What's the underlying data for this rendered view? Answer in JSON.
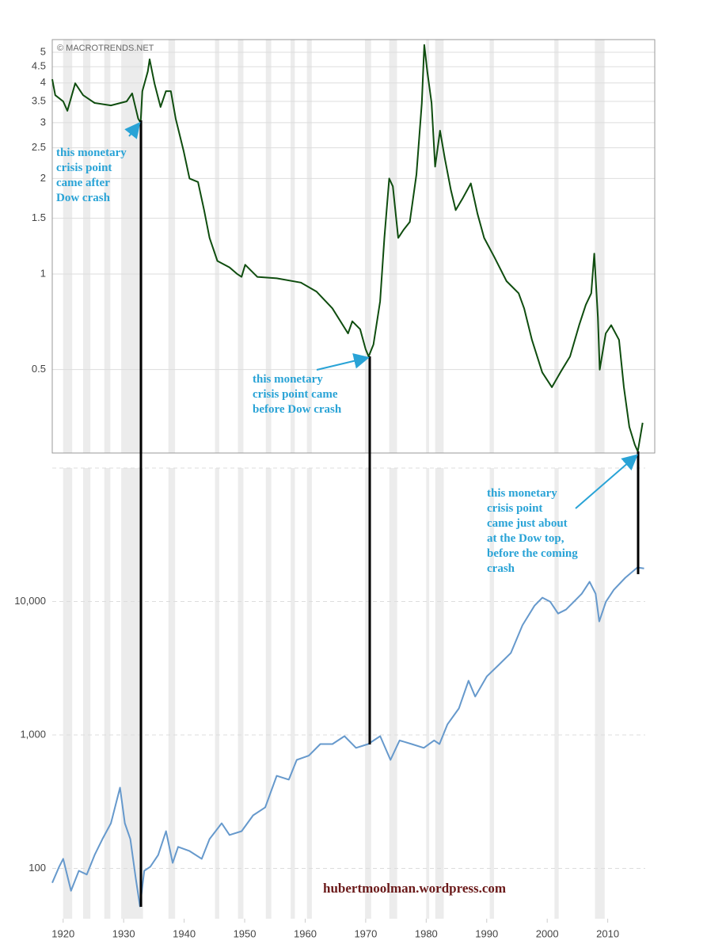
{
  "chart_data": [
    {
      "type": "line",
      "log": true,
      "color": "#0f4d0f",
      "watermark": "© MACROTRENDS.NET",
      "xlim": [
        1918.2,
        2017.8
      ],
      "ylim": [
        0.273,
        5.48
      ],
      "yticks": [
        0.5,
        1,
        1.5,
        2,
        2.5,
        3,
        3.5,
        4,
        4.5,
        5
      ],
      "grid": true,
      "recessions": [
        [
          1920,
          1921.5
        ],
        [
          1923.3,
          1924.5
        ],
        [
          1926.8,
          1927.8
        ],
        [
          1929.6,
          1933.2
        ],
        [
          1937.4,
          1938.5
        ],
        [
          1945.1,
          1945.8
        ],
        [
          1948.9,
          1949.8
        ],
        [
          1953.5,
          1954.4
        ],
        [
          1957.6,
          1958.3
        ],
        [
          1960.3,
          1961.1
        ],
        [
          1969.9,
          1970.9
        ],
        [
          1973.9,
          1975.2
        ],
        [
          1980,
          1980.5
        ],
        [
          1981.5,
          1982.9
        ],
        [
          1990.5,
          1991.2
        ],
        [
          2001.2,
          2001.9
        ],
        [
          2007.9,
          2009.5
        ]
      ],
      "x": [
        1918.2,
        1918.7,
        1920,
        1920.7,
        1922,
        1923.3,
        1925.2,
        1927.9,
        1930.5,
        1931.4,
        1932.4,
        1932.8,
        1933.1,
        1934,
        1934.3,
        1935.1,
        1936.1,
        1937,
        1937.8,
        1938.6,
        1939.9,
        1940.9,
        1942.3,
        1943.3,
        1944.2,
        1945.5,
        1947.5,
        1948.8,
        1949.5,
        1950.1,
        1952.1,
        1955.3,
        1959.3,
        1961.9,
        1964.5,
        1967.1,
        1967.8,
        1969.1,
        1970,
        1970.5,
        1971.3,
        1972.4,
        1973.1,
        1973.9,
        1974.5,
        1975.4,
        1976.3,
        1977.3,
        1978.4,
        1979.3,
        1979.7,
        1980.2,
        1980.9,
        1981.5,
        1982.3,
        1983.1,
        1984.1,
        1984.9,
        1986.1,
        1987.4,
        1988.5,
        1989.6,
        1991.3,
        1993.3,
        1995.3,
        1996.2,
        1997.5,
        1999.2,
        2000.8,
        2002.2,
        2003.8,
        2005.3,
        2006.4,
        2007.3,
        2007.8,
        2008.4,
        2008.7,
        2009.7,
        2010.6,
        2011.9,
        2012.7,
        2013.6,
        2014.5,
        2015,
        2015.8
      ],
      "values": [
        4.11,
        3.66,
        3.5,
        3.27,
        3.99,
        3.66,
        3.46,
        3.4,
        3.5,
        3.71,
        3.09,
        3.0,
        3.77,
        4.35,
        4.75,
        3.99,
        3.36,
        3.77,
        3.77,
        3.09,
        2.45,
        2.0,
        1.95,
        1.59,
        1.3,
        1.1,
        1.05,
        1.0,
        0.98,
        1.07,
        0.98,
        0.97,
        0.94,
        0.88,
        0.78,
        0.65,
        0.71,
        0.67,
        0.58,
        0.55,
        0.6,
        0.82,
        1.3,
        2.0,
        1.89,
        1.3,
        1.38,
        1.46,
        2.06,
        3.46,
        5.27,
        4.35,
        3.46,
        2.18,
        2.83,
        2.31,
        1.84,
        1.59,
        1.74,
        1.93,
        1.55,
        1.3,
        1.13,
        0.95,
        0.87,
        0.78,
        0.62,
        0.49,
        0.44,
        0.49,
        0.55,
        0.69,
        0.8,
        0.87,
        1.16,
        0.73,
        0.5,
        0.65,
        0.69,
        0.62,
        0.44,
        0.33,
        0.29,
        0.276,
        0.34
      ],
      "annotations": [
        [
          "this monetary",
          "crisis point",
          "came after",
          "Dow crash"
        ],
        [
          "this monetary",
          "crisis point came",
          "before Dow crash"
        ],
        [
          "this monetary",
          "crisis point",
          "came just about",
          "at the Dow top,",
          "before the coming",
          "crash"
        ]
      ]
    },
    {
      "type": "line",
      "log": true,
      "color": "#6699cc",
      "credit": "hubertmoolman.wordpress.com",
      "xlim": [
        1918.2,
        2016.2
      ],
      "ylim": [
        42,
        100000
      ],
      "yticks": [
        100,
        {
          "value": 1000,
          "label": "1,000"
        },
        {
          "value": 10000,
          "label": "10,000"
        }
      ],
      "grid": true,
      "xticks": [
        1920,
        1930,
        1940,
        1950,
        1960,
        1970,
        1980,
        1990,
        2000,
        2010
      ],
      "x": [
        1918.2,
        1919.3,
        1920,
        1921.3,
        1922.6,
        1923.9,
        1925.2,
        1926.5,
        1927.9,
        1929.4,
        1930.2,
        1931.1,
        1932,
        1932.7,
        1933.4,
        1934.4,
        1935.7,
        1937,
        1938.1,
        1939,
        1940.9,
        1942.9,
        1944.2,
        1946.2,
        1947.5,
        1949.5,
        1951.4,
        1953.4,
        1955.3,
        1957.3,
        1958.6,
        1960.6,
        1962.5,
        1964.5,
        1966.5,
        1968.4,
        1970.4,
        1972.4,
        1974.1,
        1975.6,
        1977.6,
        1979.6,
        1981.3,
        1982.2,
        1983.5,
        1985.4,
        1987,
        1988.1,
        1990,
        1992,
        1994,
        1995.9,
        1997.9,
        1999.2,
        2000.5,
        2001.8,
        2003.1,
        2004.4,
        2005.7,
        2007,
        2008,
        2008.6,
        2009.7,
        2011,
        2012.9,
        2014.9,
        2016
      ],
      "values": [
        78,
        102,
        118,
        68,
        96,
        90,
        126,
        166,
        218,
        403,
        218,
        166,
        84,
        52,
        96,
        103,
        126,
        190,
        110,
        145,
        135,
        118,
        166,
        218,
        178,
        190,
        250,
        287,
        494,
        463,
        650,
        700,
        855,
        855,
        980,
        800,
        855,
        980,
        650,
        910,
        855,
        800,
        910,
        855,
        1200,
        1580,
        2550,
        1940,
        2740,
        3350,
        4120,
        6640,
        9300,
        10700,
        9960,
        8120,
        8700,
        9960,
        11440,
        14060,
        11440,
        7100,
        9960,
        12240,
        15060,
        18000,
        17700
      ]
    }
  ]
}
